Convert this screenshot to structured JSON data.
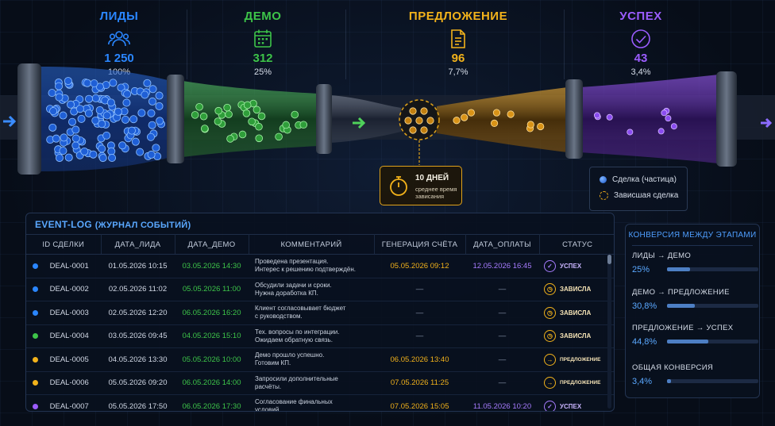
{
  "colors": {
    "leads": "#2a86ff",
    "demo": "#3dc449",
    "offer": "#f2b21b",
    "success": "#9b5cff",
    "accent": "#5aa8ff"
  },
  "stages": [
    {
      "name": "ЛИДЫ",
      "count": "1 250",
      "pct": "100%",
      "icon": "people-icon",
      "color": "#2a86ff"
    },
    {
      "name": "ДЕМО",
      "count": "312",
      "pct": "25%",
      "icon": "calendar-icon",
      "color": "#3dc449"
    },
    {
      "name": "ПРЕДЛОЖЕНИЕ",
      "count": "96",
      "pct": "7,7%",
      "icon": "document-icon",
      "color": "#f2b21b"
    },
    {
      "name": "УСПЕХ",
      "count": "43",
      "pct": "3,4%",
      "icon": "check-circle-icon",
      "color": "#9b5cff"
    }
  ],
  "callout": {
    "title": "10 ДНЕЙ",
    "subtitle": "среднее время зависания",
    "icon": "stopwatch-icon"
  },
  "legend": {
    "particle": "Сделка (частица)",
    "stuck": "Зависшая сделка"
  },
  "log": {
    "title": "EVENT-LOG",
    "subtitle": "(ЖУРНАЛ СОБЫТИЙ)",
    "columns": [
      "ID СДЕЛКИ",
      "ДАТА_ЛИДА",
      "ДАТА_ДЕМО",
      "КОММЕНТАРИЙ",
      "ГЕНЕРАЦИЯ СЧЁТА",
      "ДАТА_ОПЛАТЫ",
      "СТАТУС"
    ],
    "rows": [
      {
        "dot": "#2a86ff",
        "id": "DEAL-0001",
        "lead": "01.05.2026 10:15",
        "demo": "03.05.2026 14:30",
        "c1": "Проведена презентация.",
        "c2": "Интерес к решению подтверждён.",
        "invoice": "05.05.2026 09:12",
        "payment": "12.05.2026 16:45",
        "status": "УСПЕХ",
        "status_type": "success"
      },
      {
        "dot": "#2a86ff",
        "id": "DEAL-0002",
        "lead": "02.05.2026 11:02",
        "demo": "05.05.2026 11:00",
        "c1": "Обсудили задачи и сроки.",
        "c2": "Нужна доработка КП.",
        "invoice": "—",
        "payment": "—",
        "status": "ЗАВИСЛА",
        "status_type": "stuck"
      },
      {
        "dot": "#2a86ff",
        "id": "DEAL-0003",
        "lead": "02.05.2026 12:20",
        "demo": "06.05.2026 16:20",
        "c1": "Клиент согласовывает бюджет",
        "c2": "с руководством.",
        "invoice": "—",
        "payment": "—",
        "status": "ЗАВИСЛА",
        "status_type": "stuck"
      },
      {
        "dot": "#3dc449",
        "id": "DEAL-0004",
        "lead": "03.05.2026 09:45",
        "demo": "04.05.2026 15:10",
        "c1": "Тех. вопросы по интеграции.",
        "c2": "Ожидаем обратную связь.",
        "invoice": "—",
        "payment": "—",
        "status": "ЗАВИСЛА",
        "status_type": "stuck"
      },
      {
        "dot": "#f2b21b",
        "id": "DEAL-0005",
        "lead": "04.05.2026 13:30",
        "demo": "05.05.2026 10:00",
        "c1": "Демо прошло успешно.",
        "c2": "Готовим КП.",
        "invoice": "06.05.2026 13:40",
        "payment": "—",
        "status": "ПРЕДЛОЖЕНИЕ",
        "status_type": "offer"
      },
      {
        "dot": "#f2b21b",
        "id": "DEAL-0006",
        "lead": "05.05.2026 09:20",
        "demo": "06.05.2026 14:00",
        "c1": "Запросили дополнительные",
        "c2": "расчёты.",
        "invoice": "07.05.2026 11:25",
        "payment": "—",
        "status": "ПРЕДЛОЖЕНИЕ",
        "status_type": "offer"
      },
      {
        "dot": "#9b5cff",
        "id": "DEAL-0007",
        "lead": "05.05.2026 17:50",
        "demo": "06.05.2026 17:30",
        "c1": "Согласование финальных",
        "c2": "условий.",
        "invoice": "07.05.2026 15:05",
        "payment": "11.05.2026 10:20",
        "status": "УСПЕХ",
        "status_type": "success"
      }
    ]
  },
  "conversion": {
    "title": "КОНВЕРСИЯ МЕЖДУ ЭТАПАМИ",
    "items": [
      {
        "label": "ЛИДЫ → ДЕМО",
        "value": "25%",
        "fraction": 0.25
      },
      {
        "label": "ДЕМО → ПРЕДЛОЖЕНИЕ",
        "value": "30,8%",
        "fraction": 0.308
      },
      {
        "label": "ПРЕДЛОЖЕНИЕ → УСПЕХ",
        "value": "44,8%",
        "fraction": 0.448
      },
      {
        "label": "ОБЩАЯ КОНВЕРСИЯ",
        "value": "3,4%",
        "fraction": 0.034
      }
    ]
  }
}
